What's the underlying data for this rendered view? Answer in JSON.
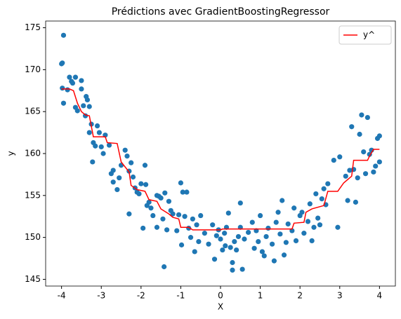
{
  "chart_data": {
    "type": "scatter",
    "title": "Prédictions avec GradientBoostingRegressor",
    "x_label": "X",
    "y_label": "y",
    "xlim": [
      -4.4,
      4.4
    ],
    "ylim": [
      144.2,
      175.8
    ],
    "xticks": [
      -4,
      -3,
      -2,
      -1,
      0,
      1,
      2,
      3,
      4
    ],
    "yticks": [
      145,
      150,
      155,
      160,
      165,
      170,
      175
    ],
    "legend": "upper right",
    "points": {
      "color": "#1f77b4",
      "x": [
        -4,
        -3.98,
        -3.95,
        -3.98,
        -3.95,
        -3.85,
        -3.8,
        -3.75,
        -3.72,
        -3.65,
        -3.65,
        -3.6,
        -3.5,
        -3.5,
        -3.45,
        -3.4,
        -3.38,
        -3.35,
        -3.3,
        -3.3,
        -3.25,
        -3.2,
        -3.22,
        -3.15,
        -3.1,
        -3.05,
        -3.0,
        -2.95,
        -2.9,
        -2.8,
        -2.75,
        -2.7,
        -2.7,
        -2.6,
        -2.55,
        -2.5,
        -2.4,
        -2.35,
        -2.3,
        -2.3,
        -2.25,
        -2.2,
        -2.15,
        -2.1,
        -2.05,
        -2.0,
        -1.95,
        -1.9,
        -1.88,
        -1.85,
        -1.8,
        -1.75,
        -1.7,
        -1.6,
        -1.6,
        -1.55,
        -1.5,
        -1.45,
        -1.42,
        -1.4,
        -1.35,
        -1.3,
        -1.25,
        -1.2,
        -1.1,
        -1.05,
        -1,
        -0.98,
        -0.95,
        -0.9,
        -0.85,
        -0.8,
        -0.75,
        -0.7,
        -0.65,
        -0.6,
        -0.55,
        -0.5,
        -0.4,
        -0.3,
        -0.2,
        -0.15,
        -0.1,
        -0.05,
        0,
        0.05,
        0.1,
        0.12,
        0.15,
        0.2,
        0.25,
        0.3,
        0.3,
        0.35,
        0.4,
        0.45,
        0.5,
        0.5,
        0.55,
        0.6,
        0.7,
        0.8,
        0.85,
        0.9,
        0.95,
        1.0,
        1.05,
        1.1,
        1.15,
        1.2,
        1.3,
        1.35,
        1.4,
        1.45,
        1.5,
        1.55,
        1.6,
        1.65,
        1.7,
        1.8,
        1.85,
        1.9,
        2.0,
        2.05,
        2.1,
        2.2,
        2.25,
        2.3,
        2.35,
        2.4,
        2.45,
        2.5,
        2.55,
        2.6,
        2.65,
        2.7,
        2.85,
        2.95,
        3.0,
        3.15,
        3.2,
        3.25,
        3.3,
        3.35,
        3.4,
        3.45,
        3.5,
        3.55,
        3.6,
        3.65,
        3.7,
        3.75,
        3.8,
        3.85,
        3.9,
        3.95,
        4.0,
        4
      ],
      "values": [
        170.7,
        170.8,
        174.1,
        167.8,
        166,
        167.6,
        169.1,
        168.6,
        168.4,
        169.1,
        165.5,
        165.1,
        168.7,
        167.7,
        165.7,
        164.5,
        166.8,
        166.4,
        165.6,
        162.5,
        163.5,
        161.3,
        159,
        160.9,
        163.3,
        162.5,
        160.8,
        160,
        162.2,
        161,
        157.6,
        158,
        156.6,
        155.7,
        157.1,
        158.6,
        160.4,
        159.7,
        152.8,
        157.9,
        158.9,
        157.2,
        155.9,
        155.4,
        155.2,
        156.4,
        151.1,
        158.6,
        156.3,
        153.8,
        154.2,
        153.5,
        152.6,
        155,
        151.2,
        154.9,
        154.7,
        152.2,
        146.5,
        155.3,
        150.9,
        154.3,
        153.2,
        152.8,
        150.8,
        152.7,
        156.5,
        149.1,
        155.4,
        152.5,
        155.4,
        151.1,
        150,
        152.2,
        148.3,
        151.5,
        149.5,
        152.6,
        150.5,
        149.2,
        151.5,
        147.4,
        150.2,
        150.9,
        149.8,
        148.5,
        150.5,
        149,
        151.2,
        152.9,
        148.8,
        147,
        146.1,
        149.5,
        148.5,
        150.1,
        154.1,
        151.2,
        146.2,
        149.8,
        150.6,
        151.8,
        148.7,
        150.8,
        149.5,
        152.6,
        148.3,
        147.8,
        150.1,
        151.1,
        149.2,
        147.2,
        151.8,
        153,
        150.4,
        154.4,
        147.9,
        149.4,
        151.6,
        150.8,
        153.5,
        149.6,
        152.6,
        153,
        150.5,
        151.9,
        154,
        149.6,
        151.2,
        155.2,
        152.3,
        151.5,
        154.6,
        155.8,
        153.9,
        156.4,
        159.2,
        151.2,
        159.6,
        157.3,
        154.4,
        158,
        163.2,
        158.1,
        154.2,
        157.1,
        162.3,
        164.6,
        160.2,
        157.6,
        164.3,
        159.9,
        160.4,
        157.8,
        158.5,
        161.8,
        162.1,
        159
      ]
    },
    "series": [
      {
        "name": "y^",
        "type": "line",
        "color": "red",
        "x": [
          -4,
          -3.8,
          -3.7,
          -3.6,
          -3.5,
          -3.4,
          -3.3,
          -3.2,
          -2.9,
          -2.85,
          -2.6,
          -2.5,
          -2.4,
          -2.3,
          -2.25,
          -2.1,
          -1.9,
          -1.8,
          -1.6,
          -1.5,
          -1.3,
          -1.2,
          -1.05,
          -1.0,
          -0.8,
          -0.7,
          0,
          0.05,
          1.8,
          1.85,
          2.1,
          2.15,
          2.3,
          2.6,
          2.7,
          2.95,
          3.1,
          3.3,
          3.35,
          3.7,
          3.75,
          3.85,
          4
        ],
        "values": [
          167.7,
          167.7,
          167.5,
          166,
          165,
          164.6,
          164.5,
          162,
          162,
          161.3,
          161.2,
          159,
          158.4,
          157.8,
          156.2,
          155.7,
          155.5,
          154.5,
          154.3,
          153.4,
          152.8,
          152.4,
          152.2,
          151.2,
          151.2,
          150.9,
          150.9,
          151.0,
          151.0,
          151.7,
          151.8,
          153.0,
          153.4,
          153.8,
          155.5,
          155.5,
          156.5,
          157.3,
          159.2,
          159.2,
          159.7,
          160.5,
          160.5
        ]
      }
    ]
  }
}
